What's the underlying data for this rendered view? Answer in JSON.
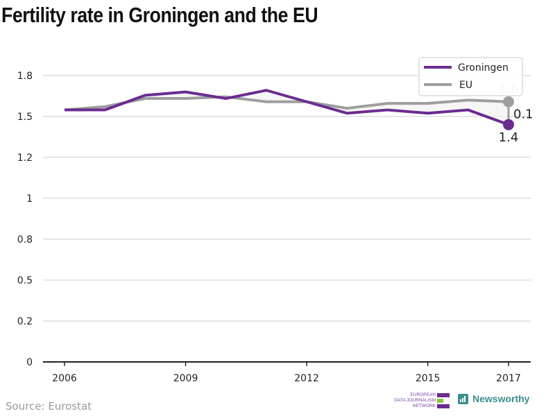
{
  "title": "Fertility rate in Groningen and the EU",
  "source": "Source: Eurostat",
  "logos": {
    "edjnet_lines": [
      "EUROPEAN",
      "DATA JOURNALISM",
      "NETWORK"
    ],
    "newsworthy": "Newsworthy"
  },
  "colors": {
    "groningen": "#6b2c91",
    "eu": "#9e9e9e",
    "grid": "#dddddd",
    "axis": "#222222",
    "edjnet_purple": "#6b2c91",
    "edjnet_green": "#8cc63f",
    "newsworthy": "#3a8f8c"
  },
  "chart_data": {
    "type": "line",
    "title": "Fertility rate in Groningen and the EU",
    "xlabel": "",
    "ylabel": "",
    "x": [
      2006,
      2007,
      2008,
      2009,
      2010,
      2011,
      2012,
      2013,
      2014,
      2015,
      2016,
      2017
    ],
    "x_ticks": [
      2006,
      2009,
      2012,
      2015,
      2017
    ],
    "x_tick_labels": [
      "2006",
      "2009",
      "2012",
      "2015",
      "2017"
    ],
    "ylim": [
      0,
      1.75
    ],
    "y_ticks": [
      0,
      0.25,
      0.5,
      0.75,
      1.0,
      1.25,
      1.5,
      1.75
    ],
    "y_tick_labels": [
      "0",
      "0.2",
      "0.5",
      "0.8",
      "1",
      "1.2",
      "1.5",
      "1.8"
    ],
    "grid": true,
    "legend_position": "top-right",
    "series": [
      {
        "name": "Groningen",
        "color": "#6b2c91",
        "values": [
          1.54,
          1.54,
          1.63,
          1.65,
          1.61,
          1.66,
          1.59,
          1.52,
          1.54,
          1.52,
          1.54,
          1.45
        ]
      },
      {
        "name": "EU",
        "color": "#9e9e9e",
        "values": [
          1.54,
          1.56,
          1.61,
          1.61,
          1.62,
          1.59,
          1.59,
          1.55,
          1.58,
          1.58,
          1.6,
          1.59
        ]
      }
    ],
    "annotations": {
      "groningen_last_label": "1.4",
      "eu_last_label": "1.6",
      "difference_label": "0.1"
    }
  }
}
